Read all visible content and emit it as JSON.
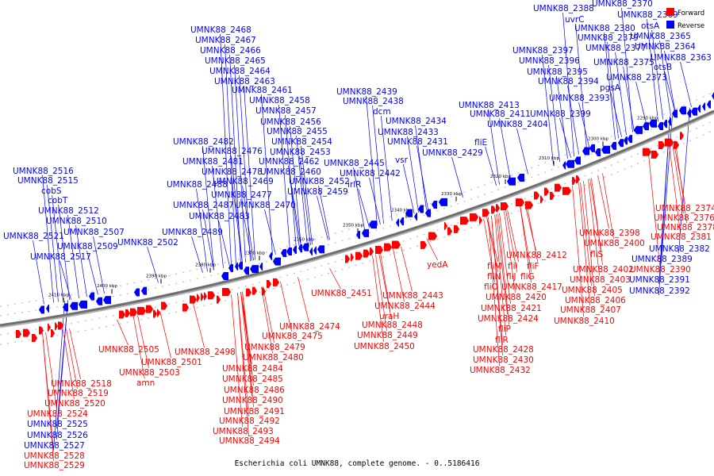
{
  "caption": "Escherichia coli UMNK88, complete genome. - 0..5186416",
  "legend": {
    "forward": {
      "label": "Forward",
      "color": "#ff0000"
    },
    "reverse": {
      "label": "Reverse",
      "color": "#0000ff"
    }
  },
  "ticks": [
    "2290 kbp",
    "2300 kbp",
    "2310 kbp",
    "2320 kbp",
    "2330 kbp",
    "2340 kbp",
    "2350 kbp",
    "2360 kbp",
    "2370 kbp",
    "2380 kbp",
    "2390 kbp",
    "2400 kbp",
    "2410 kbp"
  ],
  "reverse_labels": [
    "UMNK88_2388",
    "UMNK88_2370",
    "uvrC",
    "UMNK88_2369",
    "otsA",
    "UMNK88_2380",
    "UMNK88_2379",
    "UMNK88_2365",
    "UMNK88_2377",
    "UMNK88_2364",
    "UMNK88_2397",
    "UMNK88_2375",
    "UMNK88_2363",
    "UMNK88_2396",
    "otsB",
    "UMNK88_2395",
    "UMNK88_2373",
    "UMNK88_2394",
    "pgsA",
    "UMNK88_2393",
    "UMNK88_2468",
    "UMNK88_2467",
    "UMNK88_2466",
    "UMNK88_2465",
    "UMNK88_2464",
    "UMNK88_2463",
    "UMNK88_2461",
    "UMNK88_2458",
    "UMNK88_2457",
    "UMNK88_2456",
    "UMNK88_2455",
    "UMNK88_2454",
    "UMNK88_2453",
    "UMNK88_2462",
    "UMNK88_2460",
    "UMNK88_2452",
    "UMNK88_2459",
    "UMNK88_2482",
    "UMNK88_2476",
    "UMNK88_2481",
    "UMNK88_2478",
    "UMNK88_2469",
    "UMNK88_2488",
    "UMNK88_2477",
    "UMNK88_2470",
    "UMNK88_2487",
    "UMNK88_2483",
    "UMNK88_2489",
    "UMNK88_2502",
    "UMNK88_2439",
    "UMNK88_2438",
    "dcm",
    "UMNK88_2434",
    "UMNK88_2433",
    "UMNK88_2431",
    "UMNK88_2429",
    "UMNK88_2445",
    "vsr",
    "UMNK88_2442",
    "irlR",
    "UMNK88_2413",
    "UMNK88_2411",
    "UMNK88_2399",
    "UMNK88_2404",
    "fliE",
    "UMNK88_2516",
    "UMNK88_2515",
    "cobS",
    "cobT",
    "UMNK88_2512",
    "UMNK88_2510",
    "UMNK88_2507",
    "UMNK88_2521",
    "UMNK88_2509",
    "UMNK88_2517",
    "UMNK88_2389",
    "UMNK88_2382",
    "UMNK88_2391",
    "UMNK88_2392",
    "UMNK88_2525",
    "UMNK88_2526",
    "UMNK88_2527"
  ],
  "forward_labels": [
    "UMNK88_2374",
    "UMNK88_2376",
    "UMNK88_2378",
    "UMNK88_2381",
    "UMNK88_2390",
    "UMNK88_2398",
    "UMNK88_2400",
    "fliS",
    "UMNK88_2402",
    "UMNK88_2403",
    "UMNK88_2405",
    "UMNK88_2406",
    "UMNK88_2407",
    "UMNK88_2410",
    "UMNK88_2412",
    "fliM",
    "fliI",
    "fliF",
    "fliN",
    "fliJ",
    "fliG",
    "fliO",
    "UMNK88_2417",
    "UMNK88_2420",
    "UMNK88_2421",
    "UMNK88_2424",
    "fliP",
    "fliR",
    "UMNK88_2428",
    "UMNK88_2430",
    "UMNK88_2432",
    "yedA",
    "UMNK88_2451",
    "UMNK88_2443",
    "UMNK88_2444",
    "uraH",
    "UMNK88_2448",
    "UMNK88_2449",
    "UMNK88_2450",
    "UMNK88_2474",
    "UMNK88_2475",
    "UMNK88_2479",
    "UMNK88_2498",
    "UMNK88_2480",
    "UMNK88_2484",
    "UMNK88_2485",
    "UMNK88_2486",
    "UMNK88_2490",
    "UMNK88_2491",
    "UMNK88_2492",
    "UMNK88_2493",
    "UMNK88_2494",
    "UMNK88_2505",
    "UMNK88_2501",
    "UMNK88_2503",
    "amn",
    "UMNK88_2518",
    "UMNK88_2519",
    "UMNK88_2520",
    "UMNK88_2524",
    "UMNK88_2528",
    "UMNK88_2529"
  ]
}
